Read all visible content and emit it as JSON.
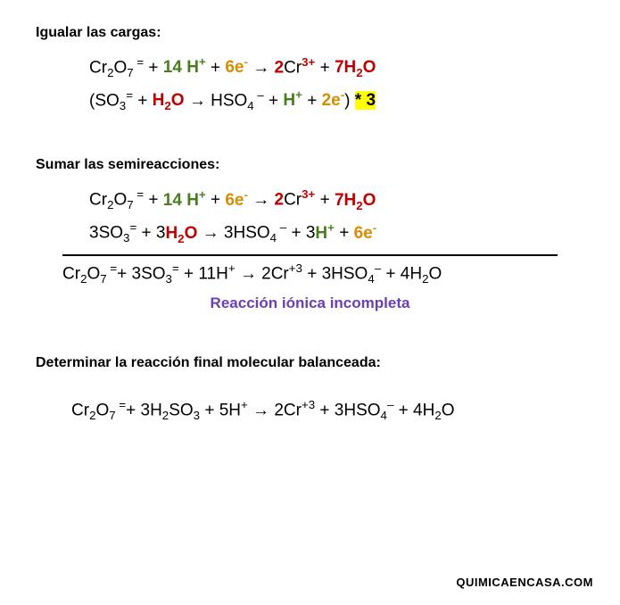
{
  "colors": {
    "green": "#4a7d1f",
    "orange": "#d98c00",
    "red": "#c00000",
    "purple": "#6a3fb5",
    "highlight_bg": "#ffff00",
    "text": "#000000",
    "background": "#ffffff"
  },
  "section1": {
    "heading": "Igualar las cargas:",
    "eq1": {
      "p1": "Cr",
      "p1_s2": "2",
      "p1b": "O",
      "p1_s7": "7",
      "p1_sup": " =",
      "plus": "  + ",
      "h14": "14 H",
      "h14_sup": "+",
      "plus2": " + ",
      "e6": "6e",
      "e6_sup": "-",
      "arrow": " →  ",
      "cr2": "2",
      "cr": "Cr",
      "cr_sup": "3+",
      "plus3": "   + ",
      "h2o7": "7H",
      "h2o_s2": "2",
      "h2o_O": "O"
    },
    "eq2": {
      "open": "(SO",
      "so_s3": "3",
      "so_sup": "=",
      "plus": "  + ",
      "h2o": "H",
      "h2o_s2": "2",
      "h2o_O": "O",
      "arrow": " → HSO",
      "hso_s4": "4",
      "hso_sup": " –",
      "plus2": "   + ",
      "hp": "H",
      "hp_sup": "+",
      "plus3": "+ ",
      "e2": "2e",
      "e2_sup": "-",
      "close": ") ",
      "mult": "* 3"
    }
  },
  "section2": {
    "heading": "Sumar las semireacciones:",
    "eq1": {
      "p1": "Cr",
      "p1_s2": "2",
      "p1b": "O",
      "p1_s7": "7",
      "p1_sup": " =",
      "plus": "  + ",
      "h14": "14 H",
      "h14_sup": "+",
      "plus2": " + ",
      "e6": "6e",
      "e6_sup": "-",
      "arrow": " →  ",
      "cr2": "2",
      "cr": "Cr",
      "cr_sup": "3+",
      "plus3": "   + ",
      "h2o7": "7H",
      "h2o_s2": "2",
      "h2o_O": "O"
    },
    "eq2": {
      "so3": "3SO",
      "so_s3": "3",
      "so_sup": "=",
      "plus": "  + 3",
      "h2o": "H",
      "h2o_s2": "2",
      "h2o_O": "O",
      "arrow": " → 3HSO",
      "hso_s4": "4",
      "hso_sup": " –",
      "plus2": "   + 3",
      "hp": "H",
      "hp_sup": "+",
      "plus3": "+ ",
      "e6": "6e",
      "e6_sup": "-"
    },
    "sum": {
      "text1": "Cr",
      "s2": "2",
      "text1b": "O",
      "s7": "7",
      "sup1": " =",
      "text2": "+ 3SO",
      "s3": "3",
      "sup2": "=",
      "text3": "  + 11H",
      "sup3": "+",
      "arrow": " → 2Cr",
      "sup4": "+3",
      "text4": " + 3HSO",
      "s4": "4",
      "sup5": "–",
      "text5": " + 4H",
      "s2b": "2",
      "text5b": "O"
    },
    "caption": "Reacción iónica incompleta"
  },
  "section3": {
    "heading": "Determinar la reacción final molecular balanceada:",
    "eq": {
      "text1": "Cr",
      "s2": "2",
      "text1b": "O",
      "s7": "7",
      "sup1": " =",
      "text2": "+ 3H",
      "s2b": "2",
      "text2b": "SO",
      "s3": "3",
      "text3": "  + 5H",
      "sup3": "+",
      "arrow": " → 2Cr",
      "sup4": "+3",
      "text4": " + 3HSO",
      "s4": "4",
      "sup5": "–",
      "text5": " + 4H",
      "s2c": "2",
      "text5b": "O"
    }
  },
  "footer": "QUIMICAENCASA.COM"
}
